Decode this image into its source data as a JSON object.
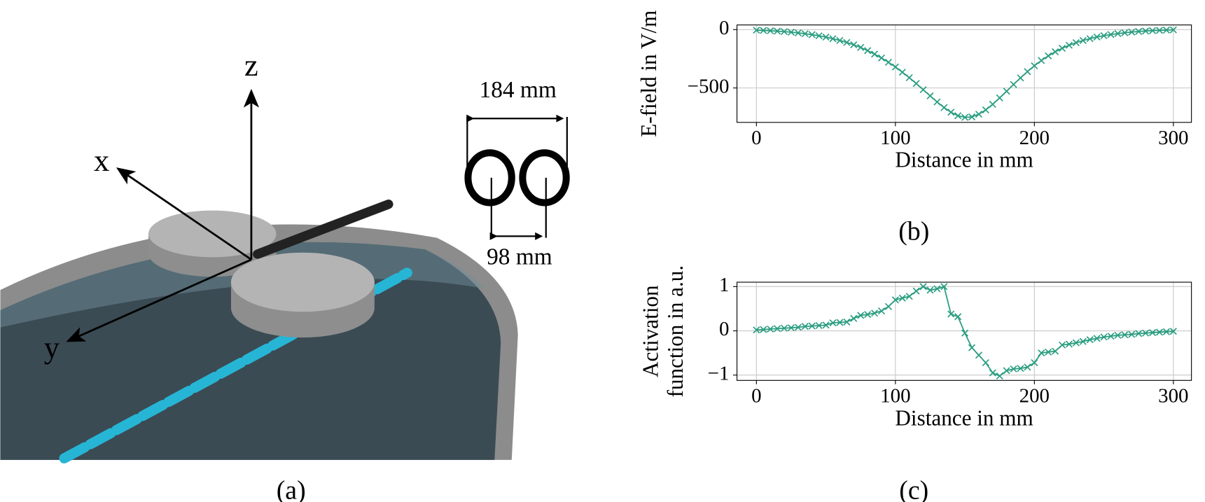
{
  "diagram": {
    "axis_z": "z",
    "axis_x": "x",
    "axis_y": "y",
    "outer_width": "184 mm",
    "center_distance": "98 mm",
    "caption": "(a)"
  },
  "chart_data": [
    {
      "type": "line",
      "caption": "(b)",
      "xlabel": "Distance in mm",
      "ylabel": [
        "E-field in V/m"
      ],
      "x": [
        0,
        5,
        10,
        15,
        20,
        25,
        30,
        35,
        40,
        45,
        50,
        55,
        60,
        65,
        70,
        75,
        80,
        85,
        90,
        95,
        100,
        105,
        110,
        115,
        120,
        125,
        130,
        135,
        140,
        145,
        150,
        155,
        160,
        165,
        170,
        175,
        180,
        185,
        190,
        195,
        200,
        205,
        210,
        215,
        220,
        225,
        230,
        235,
        240,
        245,
        250,
        255,
        260,
        265,
        270,
        275,
        280,
        285,
        290,
        295,
        300
      ],
      "series": [
        {
          "color": "#2a9d80",
          "marker": "x",
          "values": [
            -5,
            -7,
            -10,
            -13,
            -17,
            -22,
            -28,
            -35,
            -43,
            -53,
            -64,
            -78,
            -93,
            -110,
            -130,
            -153,
            -180,
            -210,
            -243,
            -280,
            -320,
            -365,
            -412,
            -462,
            -515,
            -568,
            -620,
            -668,
            -708,
            -738,
            -752,
            -748,
            -725,
            -688,
            -640,
            -585,
            -528,
            -470,
            -414,
            -360,
            -310,
            -265,
            -225,
            -190,
            -160,
            -134,
            -112,
            -93,
            -77,
            -63,
            -52,
            -42,
            -34,
            -27,
            -21,
            -16,
            -12,
            -9,
            -6,
            -4,
            -2
          ]
        }
      ],
      "xlim": [
        -14,
        313
      ],
      "ylim": [
        -795,
        40
      ],
      "xticks": [
        0,
        100,
        200,
        300
      ],
      "yticks": [
        0,
        {
          "value": -500,
          "label": "−500"
        }
      ],
      "grid": true
    },
    {
      "type": "line",
      "caption": "(c)",
      "xlabel": "Distance in mm",
      "ylabel": [
        "Activation",
        "function in a.u."
      ],
      "x": [
        0,
        5,
        10,
        15,
        20,
        25,
        30,
        35,
        40,
        45,
        50,
        55,
        60,
        65,
        70,
        75,
        80,
        85,
        90,
        95,
        100,
        105,
        110,
        115,
        120,
        125,
        130,
        135,
        140,
        145,
        150,
        155,
        160,
        165,
        170,
        175,
        180,
        185,
        190,
        195,
        200,
        205,
        210,
        215,
        220,
        225,
        230,
        235,
        240,
        245,
        250,
        255,
        260,
        265,
        270,
        275,
        280,
        285,
        290,
        295,
        300
      ],
      "series": [
        {
          "color": "#2a9d80",
          "marker": "x",
          "values": [
            0.02,
            0.03,
            0.04,
            0.05,
            0.06,
            0.07,
            0.08,
            0.1,
            0.11,
            0.12,
            0.13,
            0.18,
            0.19,
            0.2,
            0.28,
            0.35,
            0.37,
            0.4,
            0.45,
            0.55,
            0.7,
            0.74,
            0.78,
            0.9,
            1.0,
            0.92,
            0.95,
            1.0,
            0.38,
            0.32,
            -0.05,
            -0.38,
            -0.55,
            -0.72,
            -0.95,
            -1.02,
            -0.9,
            -0.86,
            -0.85,
            -0.82,
            -0.72,
            -0.5,
            -0.48,
            -0.46,
            -0.32,
            -0.3,
            -0.27,
            -0.24,
            -0.2,
            -0.17,
            -0.14,
            -0.12,
            -0.1,
            -0.09,
            -0.08,
            -0.06,
            -0.05,
            -0.04,
            -0.03,
            -0.02,
            -0.01
          ]
        }
      ],
      "xlim": [
        -14,
        313
      ],
      "ylim": [
        -1.12,
        1.1
      ],
      "xticks": [
        0,
        100,
        200,
        300
      ],
      "yticks": [
        1,
        0,
        {
          "value": -1,
          "label": "−1"
        }
      ],
      "grid": true
    }
  ]
}
